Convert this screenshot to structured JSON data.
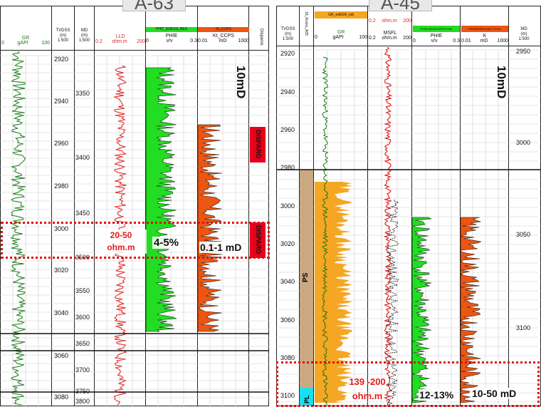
{
  "left_panel": {
    "well_title": "A-63",
    "headers": {
      "gr": {
        "name": "GR",
        "scale_min": "0",
        "unit": "gAPI",
        "scale_max": "100"
      },
      "tvdss": {
        "name": "TVDSS",
        "unit": "(m)",
        "scale": "1:500"
      },
      "md": {
        "name": "MD",
        "unit": "(m)",
        "scale": "1:500"
      },
      "lld": {
        "name": "LLD",
        "scale_min": "0.2",
        "unit": "ohm.m",
        "scale_max": "200"
      },
      "phie": {
        "label_box": "PHIT_EDESS_RES",
        "name": "PHIE",
        "scale_min": "0",
        "unit": "v/v",
        "scale_max": "0.3"
      },
      "k": {
        "label_box": "Kt_CCPS",
        "name": "Kt_CCPS",
        "scale_min": "0.01",
        "unit": "mD",
        "scale_max": "1000"
      },
      "disparos": {
        "name": "Disparos"
      }
    },
    "tvdss_ticks": [
      "2920",
      "2940",
      "2960",
      "2980",
      "3000",
      "3020",
      "3040",
      "3060",
      "3080"
    ],
    "md_ticks": [
      "3350",
      "3400",
      "3450",
      "3500",
      "3550",
      "3600",
      "3650",
      "3700",
      "3750",
      "3800"
    ],
    "disparo_label": "DISPARO",
    "perm_callout": "10mD",
    "annotations": {
      "resistivity_line1": "20-50",
      "resistivity_line2": "ohm.m",
      "porosity": "4-5%",
      "permeability": "0.1-1 mD"
    }
  },
  "right_panel": {
    "well_title": "A-45",
    "headers": {
      "tvdss": {
        "name": "TVDSS",
        "unit": "(m)",
        "scale": "1:500"
      },
      "rocks": {
        "name": "18_Rocks_A05"
      },
      "gr": {
        "label_box": "GR_edt/GR_edt",
        "name": "GR",
        "scale_min": "0",
        "unit": "gAPI",
        "scale_max": "100"
      },
      "msfl": {
        "scale_a_min": "0.2",
        "scale_a_unit": "ohm.m",
        "scale_a_max": "200",
        "name": "MSFL",
        "scale_min": "0.2",
        "unit": "ohm.m",
        "scale_max": "200"
      },
      "phie": {
        "label_box": "POROSIDAD EFECTIVA",
        "name": "PHIE",
        "scale_min": "0",
        "unit": "v/v",
        "scale_max": "0.3"
      },
      "k": {
        "label_box": "PERMEABILIDAD TOTAL",
        "name": "K",
        "scale_min": "0.01",
        "unit": "mD",
        "scale_max": "1000"
      },
      "md": {
        "name": "MD",
        "unit": "(m)",
        "scale": "1:500"
      }
    },
    "tvdss_ticks": [
      "2920",
      "2940",
      "2960",
      "2980",
      "3000",
      "3020",
      "3040",
      "3060",
      "3080",
      "3100"
    ],
    "md_ticks": [
      "2950",
      "3000",
      "3050",
      "3100"
    ],
    "facies_label": "PS",
    "facies_label_2": "PL",
    "perm_callout": "10mD",
    "annotations": {
      "resistivity_line1": "139 -200",
      "resistivity_line2": "ohm.m",
      "porosity": "12-13%",
      "permeability": "10-50 mD"
    }
  },
  "colors": {
    "gr": "#1a7a1a",
    "resistivity": "#e02020",
    "porosity_fill": "#22dd22",
    "perm_fill": "#ee5511",
    "disparo": "#e8001a",
    "facies_ps": "#c9a882",
    "facies_pl": "#18e0f0",
    "gr_fill": "#f5a623",
    "dashed_box": "#dd1111"
  }
}
